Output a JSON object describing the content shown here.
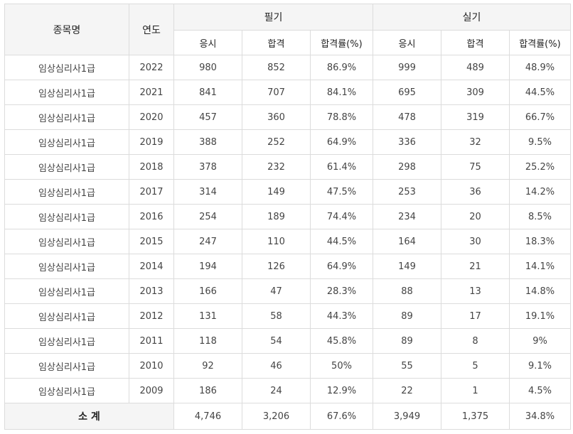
{
  "header": {
    "col_name": "종목명",
    "col_year": "연도",
    "group_written": "필기",
    "group_practical": "실기",
    "sub_applicants": "응시",
    "sub_passed": "합격",
    "sub_rate": "합격률(%)"
  },
  "rows": [
    {
      "name": "임상심리사1급",
      "year": "2022",
      "w_app": "980",
      "w_pass": "852",
      "w_rate": "86.9%",
      "p_app": "999",
      "p_pass": "489",
      "p_rate": "48.9%"
    },
    {
      "name": "임상심리사1급",
      "year": "2021",
      "w_app": "841",
      "w_pass": "707",
      "w_rate": "84.1%",
      "p_app": "695",
      "p_pass": "309",
      "p_rate": "44.5%"
    },
    {
      "name": "임상심리사1급",
      "year": "2020",
      "w_app": "457",
      "w_pass": "360",
      "w_rate": "78.8%",
      "p_app": "478",
      "p_pass": "319",
      "p_rate": "66.7%"
    },
    {
      "name": "임상심리사1급",
      "year": "2019",
      "w_app": "388",
      "w_pass": "252",
      "w_rate": "64.9%",
      "p_app": "336",
      "p_pass": "32",
      "p_rate": "9.5%"
    },
    {
      "name": "임상심리사1급",
      "year": "2018",
      "w_app": "378",
      "w_pass": "232",
      "w_rate": "61.4%",
      "p_app": "298",
      "p_pass": "75",
      "p_rate": "25.2%"
    },
    {
      "name": "임상심리사1급",
      "year": "2017",
      "w_app": "314",
      "w_pass": "149",
      "w_rate": "47.5%",
      "p_app": "253",
      "p_pass": "36",
      "p_rate": "14.2%"
    },
    {
      "name": "임상심리사1급",
      "year": "2016",
      "w_app": "254",
      "w_pass": "189",
      "w_rate": "74.4%",
      "p_app": "234",
      "p_pass": "20",
      "p_rate": "8.5%"
    },
    {
      "name": "임상심리사1급",
      "year": "2015",
      "w_app": "247",
      "w_pass": "110",
      "w_rate": "44.5%",
      "p_app": "164",
      "p_pass": "30",
      "p_rate": "18.3%"
    },
    {
      "name": "임상심리사1급",
      "year": "2014",
      "w_app": "194",
      "w_pass": "126",
      "w_rate": "64.9%",
      "p_app": "149",
      "p_pass": "21",
      "p_rate": "14.1%"
    },
    {
      "name": "임상심리사1급",
      "year": "2013",
      "w_app": "166",
      "w_pass": "47",
      "w_rate": "28.3%",
      "p_app": "88",
      "p_pass": "13",
      "p_rate": "14.8%"
    },
    {
      "name": "임상심리사1급",
      "year": "2012",
      "w_app": "131",
      "w_pass": "58",
      "w_rate": "44.3%",
      "p_app": "89",
      "p_pass": "17",
      "p_rate": "19.1%"
    },
    {
      "name": "임상심리사1급",
      "year": "2011",
      "w_app": "118",
      "w_pass": "54",
      "w_rate": "45.8%",
      "p_app": "89",
      "p_pass": "8",
      "p_rate": "9%"
    },
    {
      "name": "임상심리사1급",
      "year": "2010",
      "w_app": "92",
      "w_pass": "46",
      "w_rate": "50%",
      "p_app": "55",
      "p_pass": "5",
      "p_rate": "9.1%"
    },
    {
      "name": "임상심리사1급",
      "year": "2009",
      "w_app": "186",
      "w_pass": "24",
      "w_rate": "12.9%",
      "p_app": "22",
      "p_pass": "1",
      "p_rate": "4.5%"
    }
  ],
  "total": {
    "label": "소 계",
    "w_app": "4,746",
    "w_pass": "3,206",
    "w_rate": "67.6%",
    "p_app": "3,949",
    "p_pass": "1,375",
    "p_rate": "34.8%"
  }
}
